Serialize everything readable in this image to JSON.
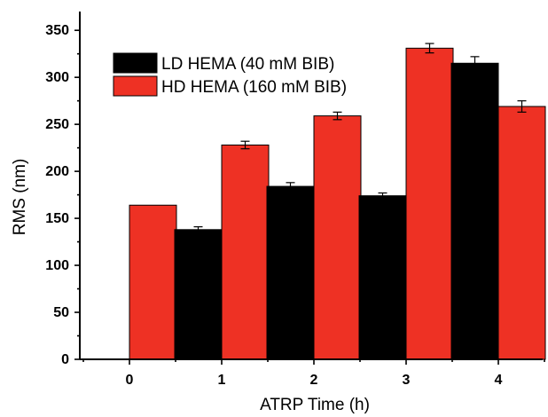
{
  "chart_data": {
    "type": "bar",
    "title": "",
    "xlabel": "ATRP Time (h)",
    "ylabel": "RMS (nm)",
    "categories": [
      "0",
      "1",
      "2",
      "3",
      "4"
    ],
    "ylim": [
      0,
      370
    ],
    "yticks": [
      0,
      50,
      100,
      150,
      200,
      250,
      300,
      350
    ],
    "legend_position": "top-left",
    "grid": false,
    "series": [
      {
        "name": "LD HEMA (40 mM BIB)",
        "color": "#000000",
        "values": [
          null,
          138,
          184,
          174,
          315
        ],
        "errors": [
          null,
          3,
          4,
          3,
          7
        ]
      },
      {
        "name": "HD HEMA (160 mM BIB)",
        "color": "#ee3124",
        "values": [
          164,
          228,
          259,
          331,
          269
        ],
        "errors": [
          null,
          4,
          4,
          5,
          6
        ]
      }
    ]
  }
}
